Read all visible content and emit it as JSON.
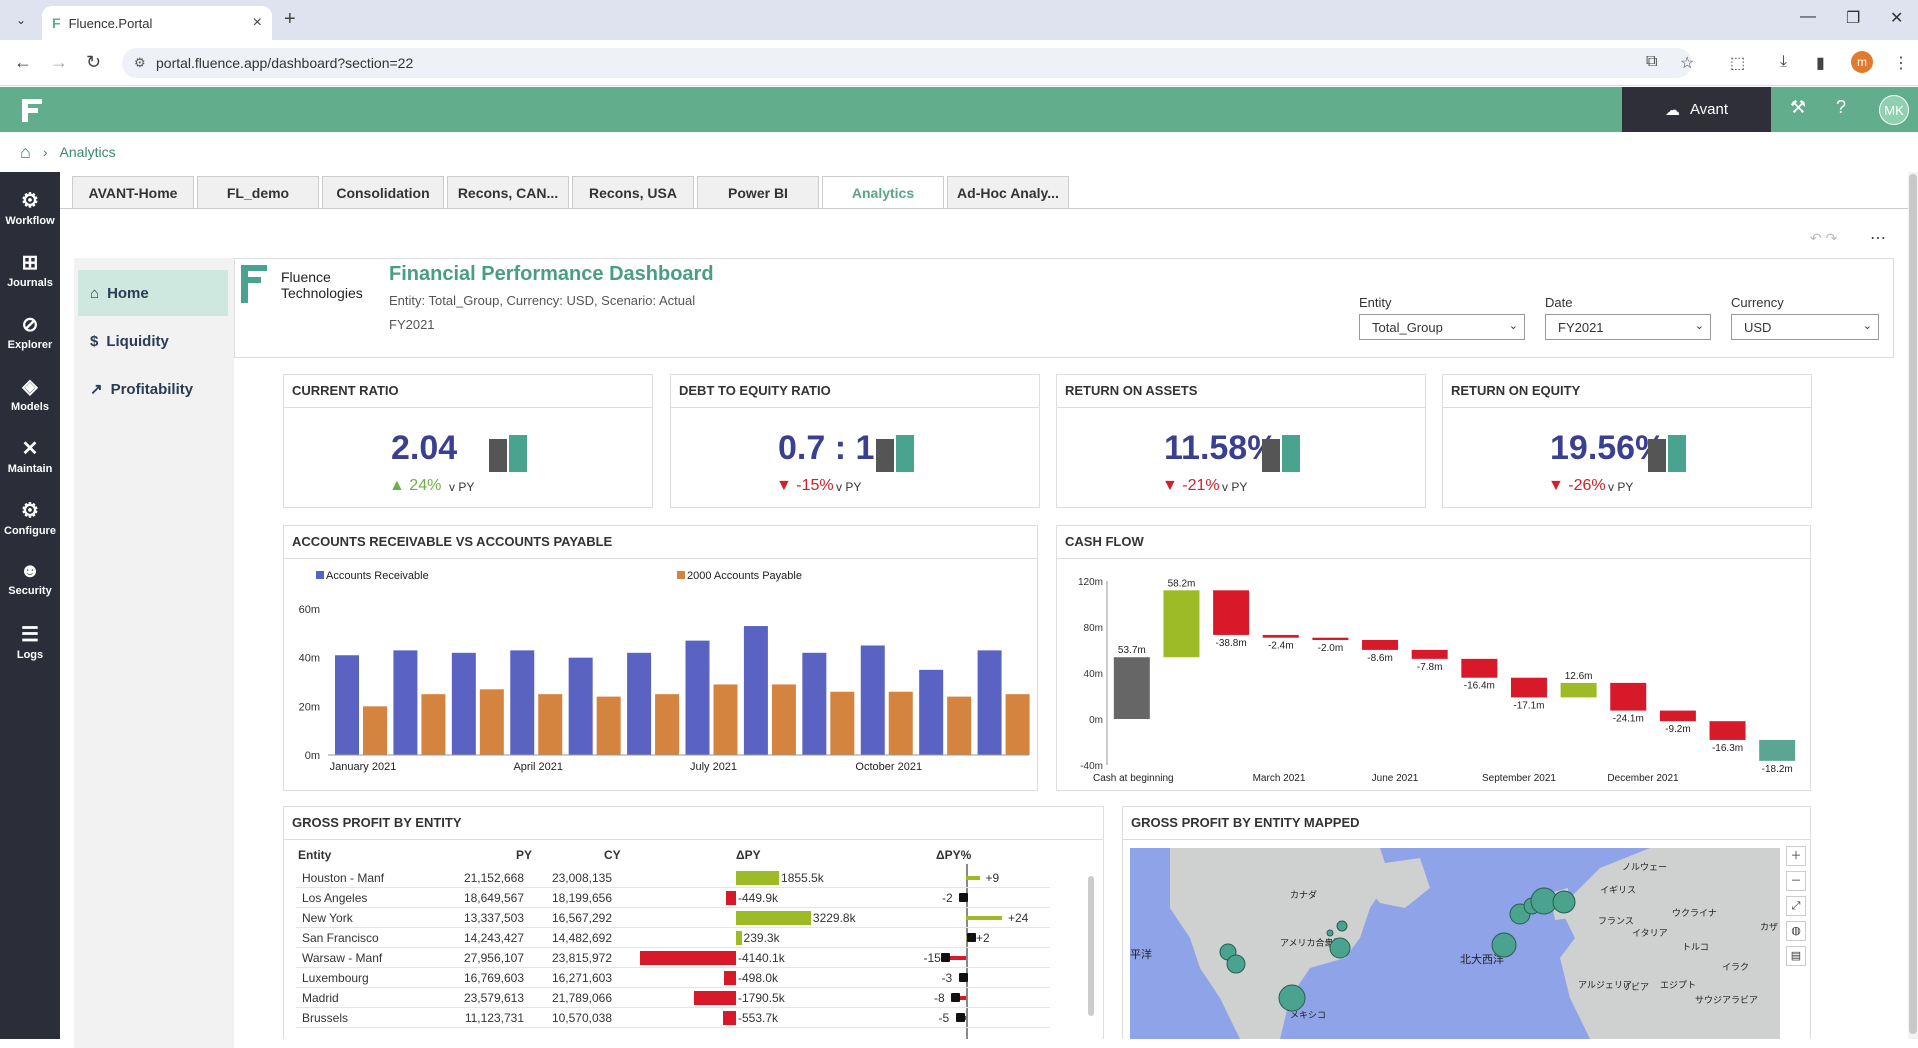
{
  "browser": {
    "tab_title": "Fluence.Portal",
    "url": "portal.fluence.app/dashboard?section=22"
  },
  "header": {
    "tenant": "Avant",
    "user_initials": "MK",
    "brand_color": "#62ad8b"
  },
  "breadcrumb": {
    "current": "Analytics"
  },
  "rail": [
    {
      "label": "Workflow",
      "icon": "workflow-icon"
    },
    {
      "label": "Journals",
      "icon": "journals-icon"
    },
    {
      "label": "Explorer",
      "icon": "explorer-icon"
    },
    {
      "label": "Models",
      "icon": "models-icon"
    },
    {
      "label": "Maintain",
      "icon": "maintain-icon"
    },
    {
      "label": "Configure",
      "icon": "configure-icon"
    },
    {
      "label": "Security",
      "icon": "security-icon"
    },
    {
      "label": "Logs",
      "icon": "logs-icon"
    }
  ],
  "page_tabs": [
    "AVANT-Home",
    "FL_demo",
    "Consolidation",
    "Recons, CAN...",
    "Recons, USA",
    "Power BI",
    "Analytics",
    "Ad-Hoc Analy..."
  ],
  "active_tab": "Analytics",
  "dash_nav": [
    {
      "label": "Home",
      "icon": "home-icon"
    },
    {
      "label": "Liquidity",
      "icon": "dollar-icon"
    },
    {
      "label": "Profitability",
      "icon": "trend-icon"
    }
  ],
  "dashboard": {
    "logo_line1": "Fluence",
    "logo_line2": "Technologies",
    "title": "Financial Performance Dashboard",
    "subtitle": "Entity: Total_Group, Currency: USD, Scenario: Actual",
    "period": "FY2021"
  },
  "filters": [
    {
      "label": "Entity",
      "value": "Total_Group"
    },
    {
      "label": "Date",
      "value": "FY2021"
    },
    {
      "label": "Currency",
      "value": "USD"
    }
  ],
  "kpis": [
    {
      "title": "CURRENT RATIO",
      "value": "2.04",
      "delta": "24%",
      "dir": "up",
      "vs": "v PY"
    },
    {
      "title": "DEBT TO EQUITY RATIO",
      "value": "0.7 : 1",
      "delta": "-15%",
      "dir": "down",
      "vs": "v PY"
    },
    {
      "title": "RETURN ON ASSETS",
      "value": "11.58%",
      "delta": "-21%",
      "dir": "down",
      "vs": "v PY"
    },
    {
      "title": "RETURN ON EQUITY",
      "value": "19.56%",
      "delta": "-26%",
      "dir": "down",
      "vs": "v PY"
    }
  ],
  "panels": {
    "ar_ap": "ACCOUNTS RECEIVABLE VS ACCOUNTS PAYABLE",
    "cashflow": "CASH FLOW",
    "gp_entity": "GROSS PROFIT BY ENTITY",
    "gp_map": "GROSS PROFIT BY ENTITY MAPPED"
  },
  "chart_data": [
    {
      "type": "bar",
      "title": "ACCOUNTS RECEIVABLE VS ACCOUNTS PAYABLE",
      "categories": [
        "January 2021",
        "",
        "",
        "April 2021",
        "",
        "",
        "July 2021",
        "",
        "",
        "October 2021",
        "",
        ""
      ],
      "series": [
        {
          "name": "Accounts Receivable",
          "color": "#5b63c2",
          "values": [
            41,
            43,
            42,
            43,
            40,
            42,
            47,
            53,
            42,
            45,
            35,
            43
          ]
        },
        {
          "name": "2000 Accounts Payable",
          "color": "#d4843f",
          "values": [
            20,
            25,
            27,
            25,
            24,
            25,
            29,
            29,
            26,
            26,
            24,
            25
          ]
        }
      ],
      "yticks": [
        "0m",
        "20m",
        "40m",
        "60m"
      ],
      "ylim": [
        0,
        60
      ],
      "legend": "top"
    },
    {
      "type": "waterfall",
      "title": "CASH FLOW",
      "yticks": [
        "-40m",
        "0m",
        "40m",
        "80m",
        "120m"
      ],
      "ylim": [
        -40,
        120
      ],
      "xlabels": [
        "Cash at beginning",
        "March 2021",
        "June 2021",
        "September 2021",
        "December 2021"
      ],
      "steps": [
        {
          "label": "53.7m",
          "value": 53.7,
          "kind": "total"
        },
        {
          "label": "58.2m",
          "value": 58.2,
          "kind": "up"
        },
        {
          "label": "-38.8m",
          "value": -38.8,
          "kind": "down"
        },
        {
          "label": "-2.4m",
          "value": -2.4,
          "kind": "down"
        },
        {
          "label": "-2.0m",
          "value": -2.0,
          "kind": "down"
        },
        {
          "label": "-8.6m",
          "value": -8.6,
          "kind": "down"
        },
        {
          "label": "-7.8m",
          "value": -7.8,
          "kind": "down"
        },
        {
          "label": "-16.4m",
          "value": -16.4,
          "kind": "down"
        },
        {
          "label": "-17.1m",
          "value": -17.1,
          "kind": "down"
        },
        {
          "label": "12.6m",
          "value": 12.6,
          "kind": "up"
        },
        {
          "label": "-24.1m",
          "value": -24.1,
          "kind": "down"
        },
        {
          "label": "-9.2m",
          "value": -9.2,
          "kind": "down"
        },
        {
          "label": "-16.3m",
          "value": -16.3,
          "kind": "down"
        },
        {
          "label": "-18.2m",
          "value": -18.2,
          "kind": "total"
        }
      ]
    }
  ],
  "gp_table": {
    "headers": [
      "Entity",
      "PY",
      "CY",
      "ΔPY",
      "ΔPY%"
    ],
    "rows": [
      {
        "entity": "Houston - Manf",
        "py": "21,152,668",
        "cy": "23,008,135",
        "dpy": "1855.5k",
        "dpy_v": 1855.5,
        "dpct": "+9",
        "dpct_v": 9
      },
      {
        "entity": "Los Angeles",
        "py": "18,649,567",
        "cy": "18,199,656",
        "dpy": "-449.9k",
        "dpy_v": -449.9,
        "dpct": "-2",
        "dpct_v": -2
      },
      {
        "entity": "New York",
        "py": "13,337,503",
        "cy": "16,567,292",
        "dpy": "3229.8k",
        "dpy_v": 3229.8,
        "dpct": "+24",
        "dpct_v": 24
      },
      {
        "entity": "San Francisco",
        "py": "14,243,427",
        "cy": "14,482,692",
        "dpy": "239.3k",
        "dpy_v": 239.3,
        "dpct": "+2",
        "dpct_v": 2
      },
      {
        "entity": "Warsaw - Manf",
        "py": "27,956,107",
        "cy": "23,815,972",
        "dpy": "-4140.1k",
        "dpy_v": -4140.1,
        "dpct": "-15",
        "dpct_v": -15
      },
      {
        "entity": "Luxembourg",
        "py": "16,769,603",
        "cy": "16,271,603",
        "dpy": "-498.0k",
        "dpy_v": -498.0,
        "dpct": "-3",
        "dpct_v": -3
      },
      {
        "entity": "Madrid",
        "py": "23,579,613",
        "cy": "21,789,066",
        "dpy": "-1790.5k",
        "dpy_v": -1790.5,
        "dpct": "-8",
        "dpct_v": -8
      },
      {
        "entity": "Brussels",
        "py": "11,123,731",
        "cy": "10,570,038",
        "dpy": "-553.7k",
        "dpy_v": -553.7,
        "dpct": "-5",
        "dpct_v": -5
      }
    ]
  },
  "map_labels": {
    "canada": "カナダ",
    "usa": "アメリカ合衆国",
    "mexico": "メキシコ",
    "atlantic": "北大西洋",
    "pacific": "平洋",
    "norway": "ノルウェー",
    "uk": "イギリス",
    "ukraine": "ウクライナ",
    "france": "フランス",
    "italy": "イタリア",
    "turkey": "トルコ",
    "iraq": "イラク",
    "algeria": "アルジェリア",
    "libya": "リビア",
    "egypt": "エジプト",
    "saudi": "サウジアラビア",
    "kaza": "カザ"
  }
}
